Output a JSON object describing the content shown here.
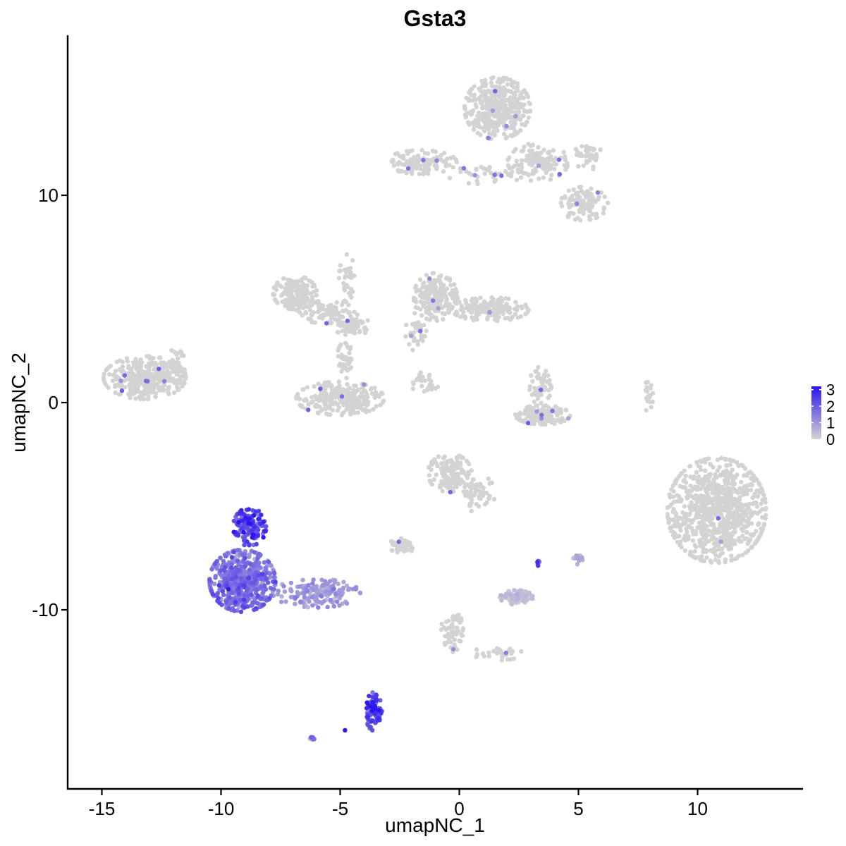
{
  "chart_data": {
    "type": "scatter",
    "title": "Gsta3",
    "xlabel": "umapNC_1",
    "ylabel": "umapNC_2",
    "xlim": [
      -16.5,
      14.5
    ],
    "ylim": [
      -18.5,
      17.6
    ],
    "x_ticks": [
      -15,
      -10,
      -5,
      0,
      5,
      10
    ],
    "y_ticks": [
      -10,
      0,
      10
    ],
    "x_tick_labels": [
      "-15",
      "-10",
      "-5",
      "0",
      "5",
      "10"
    ],
    "y_tick_labels": [
      "-10",
      "0",
      "10"
    ],
    "grid": false,
    "legend_position": "right",
    "color_scale": {
      "low_color": "#d3d3d3",
      "high_color": "#2b14ee",
      "min": 0,
      "max": 3.2,
      "breaks": [
        0,
        1,
        2,
        3
      ],
      "labels": [
        "0",
        "1",
        "2",
        "3"
      ]
    },
    "clusters": [
      {
        "cx": 1.6,
        "cy": 14.2,
        "rx": 1.2,
        "ry": 1.3,
        "n": 420,
        "expr": 0
      },
      {
        "cx": 3.3,
        "cy": 11.6,
        "rx": 1.1,
        "ry": 0.8,
        "n": 120,
        "expr": 0
      },
      {
        "cx": 5.2,
        "cy": 9.6,
        "rx": 0.9,
        "ry": 0.7,
        "n": 110,
        "expr": 0
      },
      {
        "cx": 5.4,
        "cy": 11.9,
        "rx": 0.5,
        "ry": 0.6,
        "n": 40,
        "expr": 0
      },
      {
        "cx": -1.6,
        "cy": 11.6,
        "rx": 1.3,
        "ry": 0.5,
        "n": 120,
        "expr": 0
      },
      {
        "cx": 1.1,
        "cy": 11.0,
        "rx": 1.4,
        "ry": 0.4,
        "n": 40,
        "expr": 0
      },
      {
        "cx": -13.2,
        "cy": 1.2,
        "rx": 1.5,
        "ry": 0.9,
        "n": 340,
        "expr": 0
      },
      {
        "cx": -12.0,
        "cy": 1.5,
        "rx": 0.5,
        "ry": 1.0,
        "n": 40,
        "expr": 0
      },
      {
        "cx": -6.9,
        "cy": 5.3,
        "rx": 0.8,
        "ry": 0.7,
        "n": 160,
        "expr": 0
      },
      {
        "cx": -5.6,
        "cy": 4.4,
        "rx": 1.2,
        "ry": 0.5,
        "n": 90,
        "expr": 0
      },
      {
        "cx": -4.5,
        "cy": 3.7,
        "rx": 0.7,
        "ry": 0.4,
        "n": 80,
        "expr": 0
      },
      {
        "cx": -4.7,
        "cy": 6.0,
        "rx": 0.3,
        "ry": 1.0,
        "n": 30,
        "expr": 0
      },
      {
        "cx": -5.0,
        "cy": 0.2,
        "rx": 1.6,
        "ry": 0.7,
        "n": 280,
        "expr": 0
      },
      {
        "cx": -4.8,
        "cy": 2.0,
        "rx": 0.3,
        "ry": 0.8,
        "n": 40,
        "expr": 0
      },
      {
        "cx": -1.0,
        "cy": 5.1,
        "rx": 0.8,
        "ry": 1.0,
        "n": 200,
        "expr": 0
      },
      {
        "cx": 1.3,
        "cy": 4.5,
        "rx": 1.4,
        "ry": 0.5,
        "n": 170,
        "expr": 0
      },
      {
        "cx": -1.8,
        "cy": 3.4,
        "rx": 0.4,
        "ry": 0.8,
        "n": 40,
        "expr": 0
      },
      {
        "cx": -1.4,
        "cy": 1.0,
        "rx": 0.7,
        "ry": 0.4,
        "n": 30,
        "expr": 0
      },
      {
        "cx": 3.5,
        "cy": -0.6,
        "rx": 1.0,
        "ry": 0.4,
        "n": 150,
        "expr": 0
      },
      {
        "cx": 3.4,
        "cy": 0.8,
        "rx": 0.4,
        "ry": 0.8,
        "n": 50,
        "expr": 0
      },
      {
        "cx": 7.9,
        "cy": 0.3,
        "rx": 0.2,
        "ry": 0.6,
        "n": 20,
        "expr": 0
      },
      {
        "cx": 10.8,
        "cy": -5.2,
        "rx": 1.8,
        "ry": 2.2,
        "n": 820,
        "expr": 0
      },
      {
        "cx": -0.4,
        "cy": -3.4,
        "rx": 0.8,
        "ry": 0.8,
        "n": 140,
        "expr": 0
      },
      {
        "cx": 0.8,
        "cy": -4.4,
        "rx": 0.6,
        "ry": 0.8,
        "n": 60,
        "expr": 0
      },
      {
        "cx": -2.4,
        "cy": -6.9,
        "rx": 0.5,
        "ry": 0.3,
        "n": 60,
        "expr": 0
      },
      {
        "cx": 2.4,
        "cy": -9.4,
        "rx": 0.6,
        "ry": 0.3,
        "n": 80,
        "expr": 0.25
      },
      {
        "cx": -0.3,
        "cy": -11.0,
        "rx": 0.4,
        "ry": 0.9,
        "n": 60,
        "expr": 0
      },
      {
        "cx": 1.6,
        "cy": -12.1,
        "rx": 0.9,
        "ry": 0.3,
        "n": 30,
        "expr": 0
      },
      {
        "cx": 3.3,
        "cy": -7.7,
        "rx": 0.1,
        "ry": 0.15,
        "n": 8,
        "expr": 1.8
      },
      {
        "cx": 5.0,
        "cy": -7.5,
        "rx": 0.2,
        "ry": 0.3,
        "n": 15,
        "expr": 0.6
      },
      {
        "cx": -8.8,
        "cy": -6.0,
        "rx": 0.6,
        "ry": 0.8,
        "n": 150,
        "expr": 2.1
      },
      {
        "cx": -9.1,
        "cy": -8.6,
        "rx": 1.2,
        "ry": 1.3,
        "n": 560,
        "expr": 1.5
      },
      {
        "cx": -6.0,
        "cy": -9.2,
        "rx": 1.6,
        "ry": 0.6,
        "n": 160,
        "expr": 0.9
      },
      {
        "cx": -3.6,
        "cy": -14.9,
        "rx": 0.3,
        "ry": 0.8,
        "n": 90,
        "expr": 2.3
      },
      {
        "cx": -6.1,
        "cy": -16.2,
        "rx": 0.15,
        "ry": 0.1,
        "n": 6,
        "expr": 1.3
      },
      {
        "cx": -4.8,
        "cy": -15.8,
        "rx": 0.02,
        "ry": 0.02,
        "n": 1,
        "expr": 3.0
      }
    ]
  }
}
